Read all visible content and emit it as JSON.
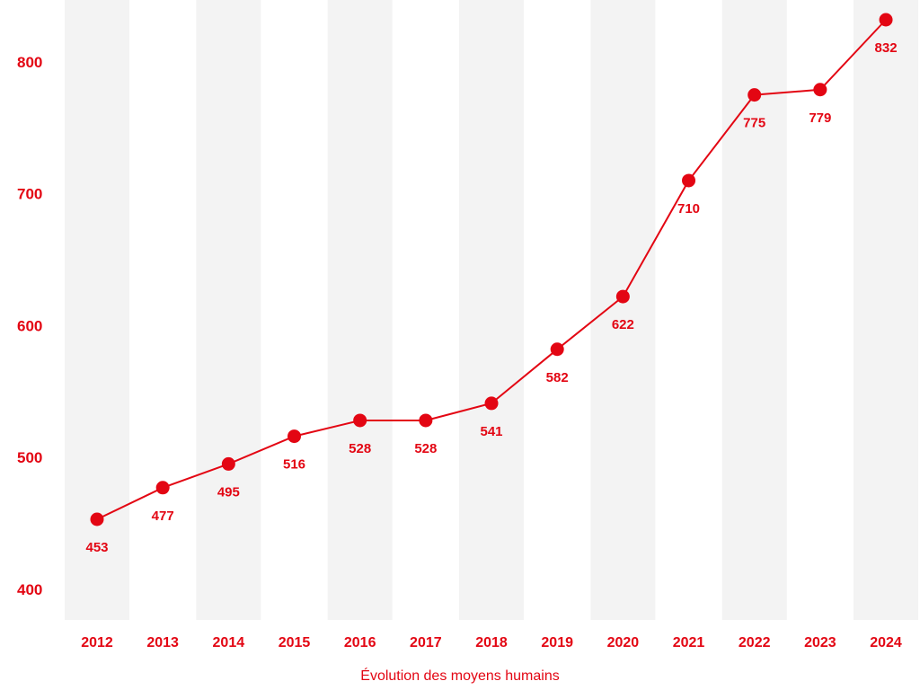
{
  "colors": {
    "accent": "#e30613",
    "band": "#f3f3f3",
    "background": "#ffffff"
  },
  "chart_data": {
    "type": "line",
    "title": "",
    "xlabel": "Évolution des moyens humains",
    "ylabel": "",
    "categories": [
      "2012",
      "2013",
      "2014",
      "2015",
      "2016",
      "2017",
      "2018",
      "2019",
      "2020",
      "2021",
      "2022",
      "2023",
      "2024"
    ],
    "series": [
      {
        "values": [
          453,
          477,
          495,
          516,
          528,
          528,
          541,
          582,
          622,
          710,
          775,
          779,
          832
        ]
      }
    ],
    "yticks": [
      400,
      500,
      600,
      700,
      800
    ],
    "grid": "alternating vertical bands",
    "legend": "none"
  }
}
